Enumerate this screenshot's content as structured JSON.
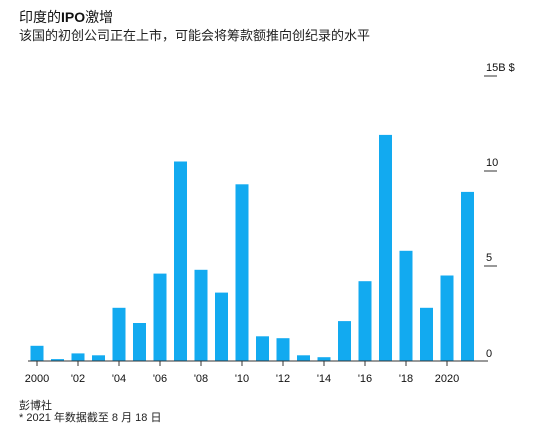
{
  "header": {
    "title_prefix": "印度的",
    "title_bold": "IPO",
    "title_suffix": "激增",
    "subtitle": "该国的初创公司正在上市，可能会将筹款额推向创纪录的水平"
  },
  "footer": {
    "source": "彭博社",
    "note": "* 2021 年数据截至 8 月 18 日"
  },
  "colors": {
    "bar": "#12aaf0",
    "axis": "#333333",
    "text": "#111111"
  },
  "chart_data": {
    "type": "bar",
    "title": "",
    "xlabel": "",
    "ylabel": "",
    "unit": "$",
    "categories": [
      "2000",
      "2001",
      "2002",
      "2003",
      "2004",
      "2005",
      "2006",
      "2007",
      "2008",
      "2009",
      "2010",
      "2011",
      "2012",
      "2013",
      "2014",
      "2015",
      "2016",
      "2017",
      "2018",
      "2019",
      "2020",
      "2021"
    ],
    "values": [
      0.8,
      0.1,
      0.4,
      0.3,
      2.8,
      2.0,
      4.6,
      10.5,
      4.8,
      3.6,
      9.3,
      1.3,
      1.2,
      0.3,
      0.2,
      2.1,
      4.2,
      11.9,
      5.8,
      2.8,
      4.5,
      8.9
    ],
    "x_tick_labels": [
      {
        "index": 0,
        "label": "2000"
      },
      {
        "index": 2,
        "label": "'02"
      },
      {
        "index": 4,
        "label": "'04"
      },
      {
        "index": 6,
        "label": "'06"
      },
      {
        "index": 8,
        "label": "'08"
      },
      {
        "index": 10,
        "label": "'10"
      },
      {
        "index": 12,
        "label": "'12"
      },
      {
        "index": 14,
        "label": "'14"
      },
      {
        "index": 16,
        "label": "'16"
      },
      {
        "index": 18,
        "label": "'18"
      },
      {
        "index": 20,
        "label": "2020"
      }
    ],
    "y_ticks": [
      {
        "value": 0,
        "label": "0"
      },
      {
        "value": 5,
        "label": "5"
      },
      {
        "value": 10,
        "label": "10"
      },
      {
        "value": 15,
        "label": "15B $"
      }
    ],
    "ylim": [
      0,
      15
    ],
    "grid": false,
    "legend": "none"
  }
}
